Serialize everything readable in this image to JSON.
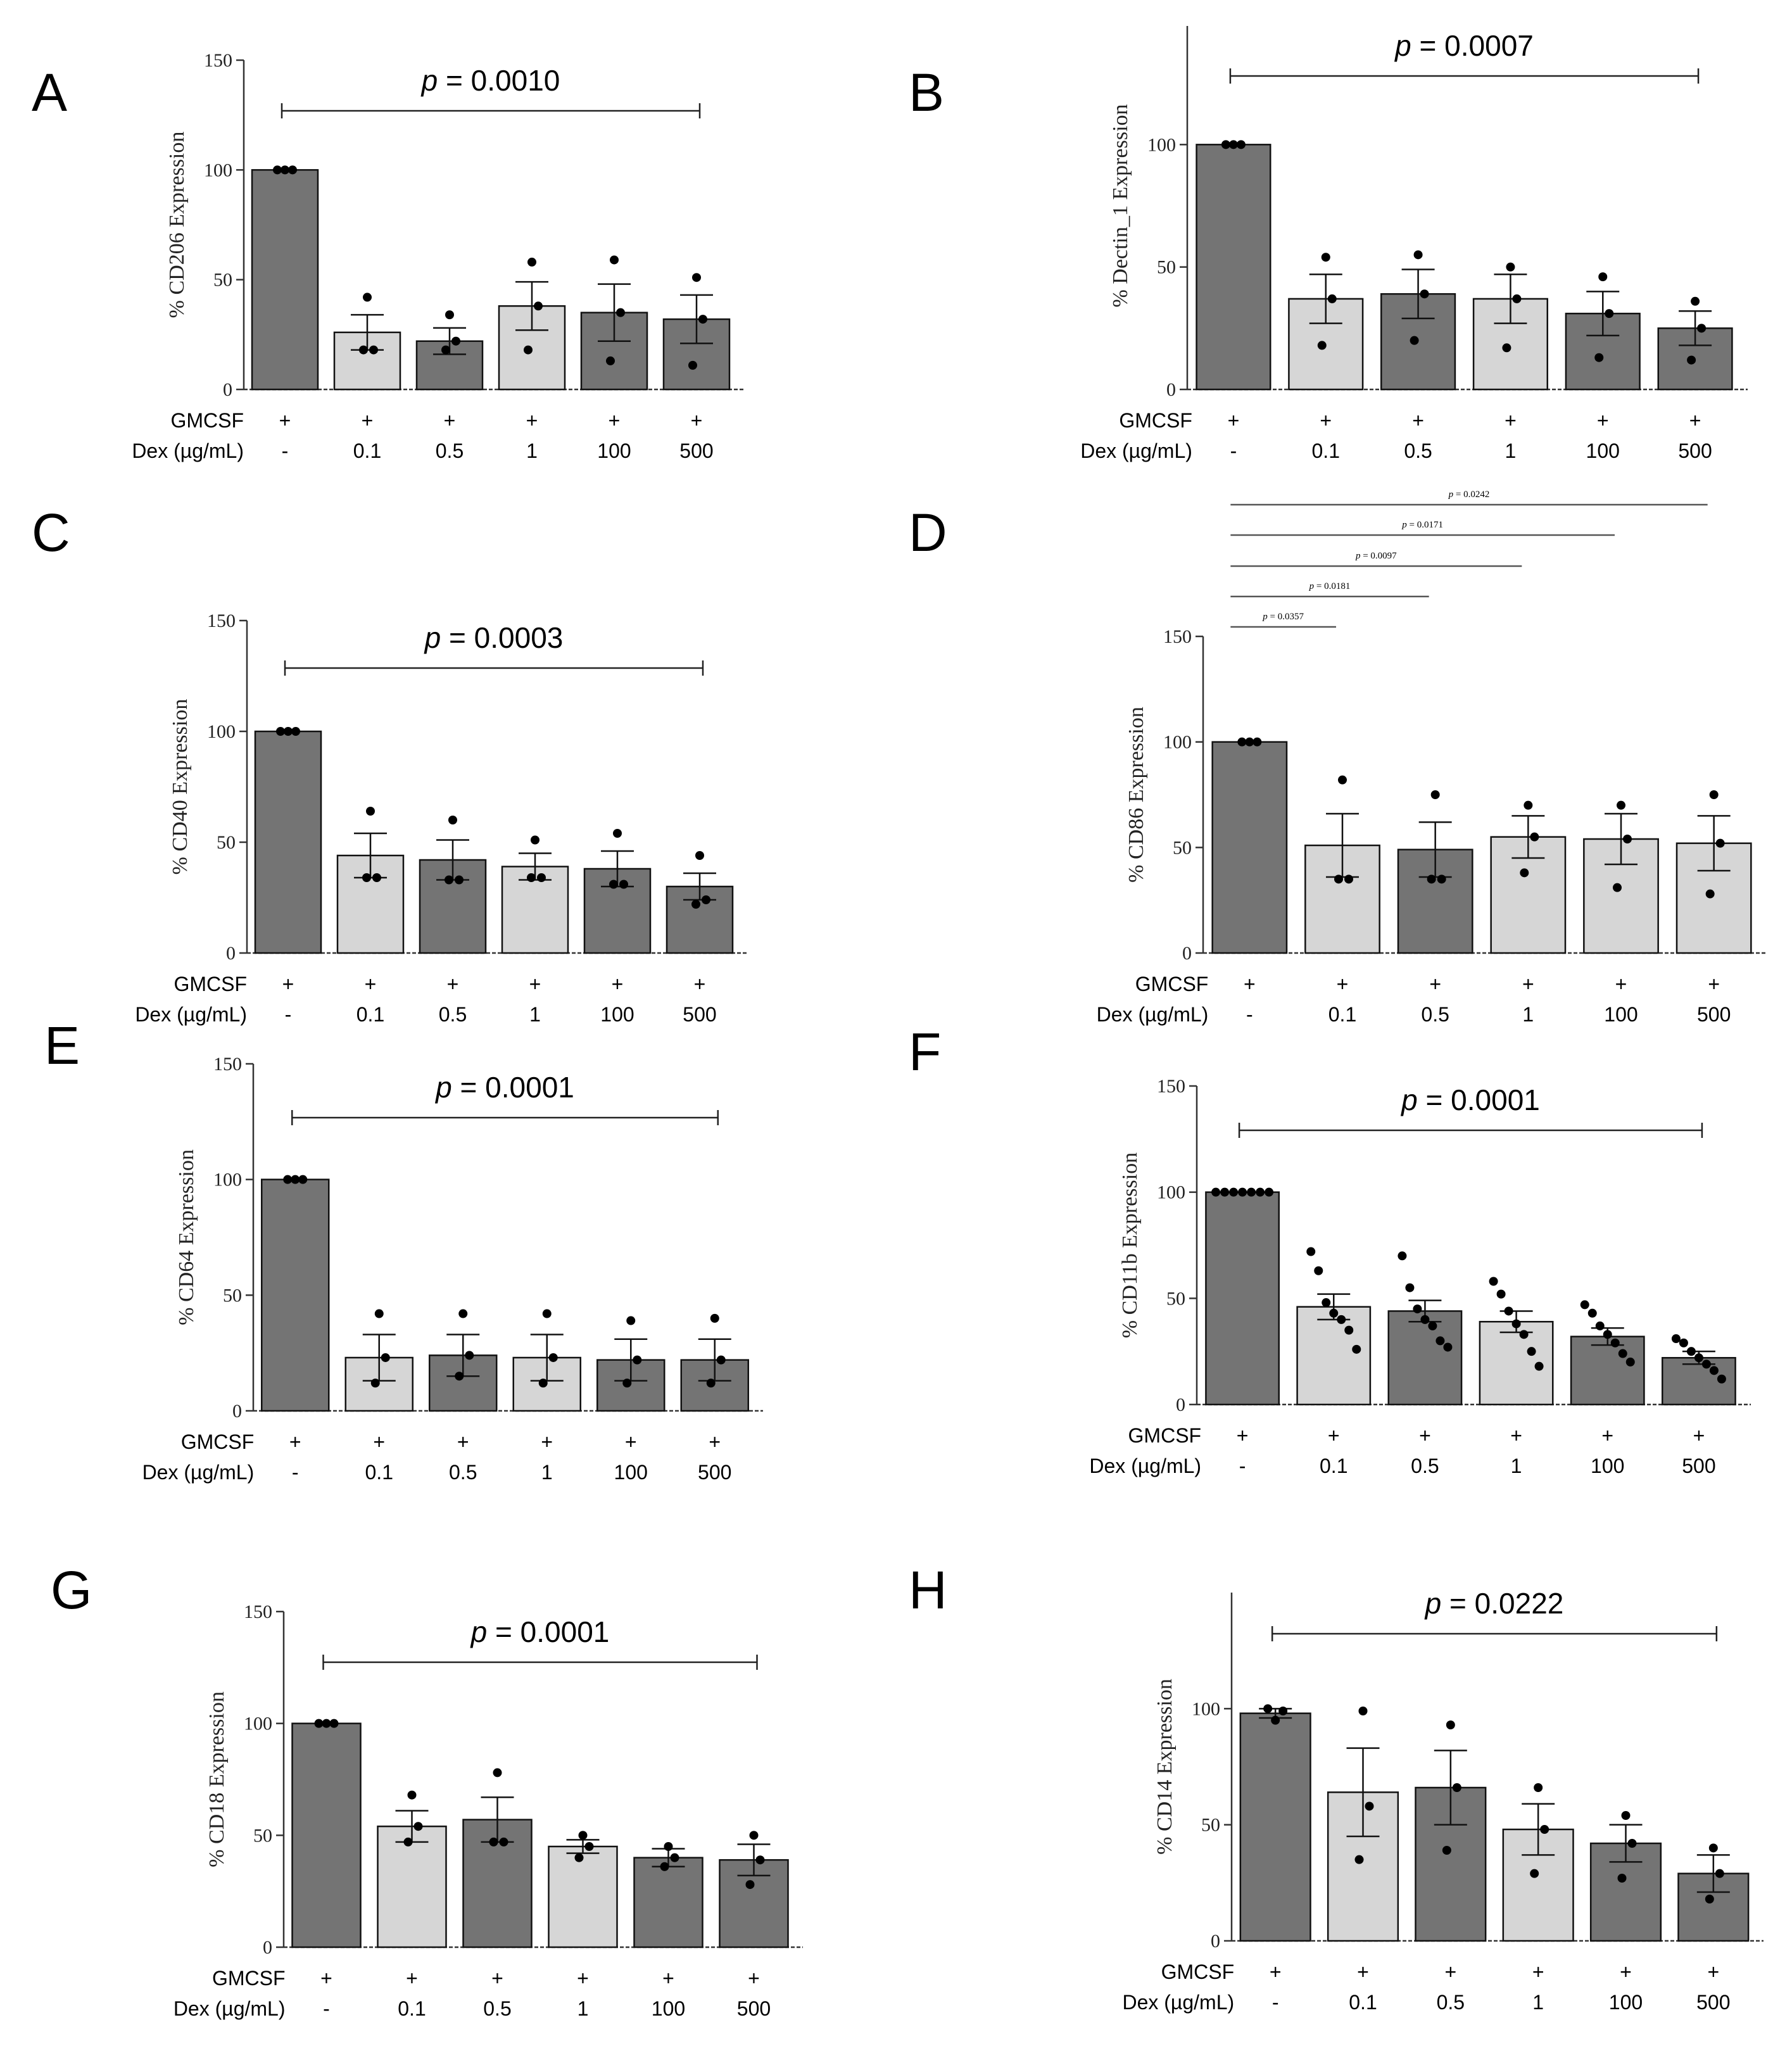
{
  "chart_data": [
    {
      "panel": "A",
      "type": "bar",
      "ylabel": "% CD206 Expression",
      "ylim": [
        0,
        150
      ],
      "yticks": [
        "0",
        "50",
        "100",
        "150"
      ],
      "categories": [
        "-",
        "0.1",
        "0.5",
        "1",
        "100",
        "500"
      ],
      "gmcsf": [
        "+",
        "+",
        "+",
        "+",
        "+",
        "+"
      ],
      "values": [
        100,
        26,
        22,
        38,
        35,
        32
      ],
      "errors": [
        0,
        8,
        6,
        11,
        13,
        11
      ],
      "points": [
        [
          100,
          100,
          100
        ],
        [
          42,
          18,
          18
        ],
        [
          34,
          18,
          22
        ],
        [
          58,
          18,
          38
        ],
        [
          59,
          13,
          35
        ],
        [
          51,
          11,
          32
        ]
      ],
      "colors": [
        "dark",
        "light",
        "dark",
        "light",
        "dark",
        "dark"
      ],
      "row_labels": [
        "GMCSF",
        "Dex (µg/mL)"
      ],
      "p_values": [
        {
          "label": "p = 0.0010",
          "from": 0,
          "to": 5
        }
      ]
    },
    {
      "panel": "B",
      "type": "bar",
      "ylabel": "% Dectin_1 Expression",
      "ylim": [
        0,
        150
      ],
      "yticks": [
        "0",
        "50",
        "100"
      ],
      "categories": [
        "-",
        "0.1",
        "0.5",
        "1",
        "100",
        "500"
      ],
      "gmcsf": [
        "+",
        "+",
        "+",
        "+",
        "+",
        "+"
      ],
      "values": [
        100,
        37,
        39,
        37,
        31,
        25
      ],
      "errors": [
        0,
        10,
        10,
        10,
        9,
        7
      ],
      "points": [
        [
          100,
          100,
          100
        ],
        [
          54,
          18,
          37
        ],
        [
          55,
          20,
          39
        ],
        [
          50,
          17,
          37
        ],
        [
          46,
          13,
          31
        ],
        [
          36,
          12,
          25
        ]
      ],
      "colors": [
        "dark",
        "light",
        "dark",
        "light",
        "dark",
        "dark"
      ],
      "row_labels": [
        "GMCSF",
        "Dex (µg/mL)"
      ],
      "p_values": [
        {
          "label": "p = 0.0007",
          "from": 0,
          "to": 5
        }
      ]
    },
    {
      "panel": "C",
      "type": "bar",
      "ylabel": "% CD40 Expression",
      "ylim": [
        0,
        150
      ],
      "yticks": [
        "0",
        "50",
        "100",
        "150"
      ],
      "categories": [
        "-",
        "0.1",
        "0.5",
        "1",
        "100",
        "500"
      ],
      "gmcsf": [
        "+",
        "+",
        "+",
        "+",
        "+",
        "+"
      ],
      "values": [
        100,
        44,
        42,
        39,
        38,
        30
      ],
      "errors": [
        0,
        10,
        9,
        6,
        8,
        6
      ],
      "points": [
        [
          100,
          100,
          100
        ],
        [
          64,
          34,
          34
        ],
        [
          60,
          33,
          33
        ],
        [
          51,
          34,
          34
        ],
        [
          54,
          31,
          31
        ],
        [
          44,
          22,
          24
        ]
      ],
      "colors": [
        "dark",
        "light",
        "dark",
        "light",
        "dark",
        "dark"
      ],
      "row_labels": [
        "GMCSF",
        "Dex (µg/mL)"
      ],
      "p_values": [
        {
          "label": "p = 0.0003",
          "from": 0,
          "to": 5
        }
      ]
    },
    {
      "panel": "D",
      "type": "bar",
      "ylabel": "% CD86 Expression",
      "ylim": [
        0,
        150
      ],
      "yticks": [
        "0",
        "50",
        "100",
        "150"
      ],
      "categories": [
        "-",
        "0.1",
        "0.5",
        "1",
        "100",
        "500"
      ],
      "gmcsf": [
        "+",
        "+",
        "+",
        "+",
        "+",
        "+"
      ],
      "values": [
        100,
        51,
        49,
        55,
        54,
        52
      ],
      "errors": [
        0,
        15,
        13,
        10,
        12,
        13
      ],
      "points": [
        [
          100,
          100,
          100
        ],
        [
          82,
          35,
          35
        ],
        [
          75,
          35,
          35
        ],
        [
          70,
          38,
          55
        ],
        [
          70,
          31,
          54
        ],
        [
          75,
          28,
          52
        ]
      ],
      "colors": [
        "dark",
        "light",
        "dark",
        "light",
        "light",
        "light"
      ],
      "row_labels": [
        "GMCSF",
        "Dex (µg/mL)"
      ],
      "p_values": [
        {
          "label": "p = 0.0357",
          "from": 0,
          "to": 1
        },
        {
          "label": "p = 0.0181",
          "from": 0,
          "to": 2
        },
        {
          "label": "p = 0.0097",
          "from": 0,
          "to": 3
        },
        {
          "label": "p = 0.0171",
          "from": 0,
          "to": 4
        },
        {
          "label": "p = 0.0242",
          "from": 0,
          "to": 5
        }
      ]
    },
    {
      "panel": "E",
      "type": "bar",
      "ylabel": "% CD64 Expression",
      "ylim": [
        0,
        150
      ],
      "yticks": [
        "0",
        "50",
        "100",
        "150"
      ],
      "categories": [
        "-",
        "0.1",
        "0.5",
        "1",
        "100",
        "500"
      ],
      "gmcsf": [
        "+",
        "+",
        "+",
        "+",
        "+",
        "+"
      ],
      "values": [
        100,
        23,
        24,
        23,
        22,
        22
      ],
      "errors": [
        0,
        10,
        9,
        10,
        9,
        9
      ],
      "points": [
        [
          100,
          100,
          100
        ],
        [
          42,
          12,
          23
        ],
        [
          42,
          15,
          24
        ],
        [
          42,
          12,
          23
        ],
        [
          39,
          12,
          22
        ],
        [
          40,
          12,
          22
        ]
      ],
      "colors": [
        "dark",
        "light",
        "dark",
        "light",
        "dark",
        "dark"
      ],
      "row_labels": [
        "GMCSF",
        "Dex (µg/mL)"
      ],
      "p_values": [
        {
          "label": "p = 0.0001",
          "from": 0,
          "to": 5
        }
      ]
    },
    {
      "panel": "F",
      "type": "bar",
      "ylabel": "% CD11b Expression",
      "ylim": [
        0,
        150
      ],
      "yticks": [
        "0",
        "50",
        "100",
        "150"
      ],
      "categories": [
        "-",
        "0.1",
        "0.5",
        "1",
        "100",
        "500"
      ],
      "gmcsf": [
        "+",
        "+",
        "+",
        "+",
        "+",
        "+"
      ],
      "values": [
        100,
        46,
        44,
        39,
        32,
        22
      ],
      "errors": [
        0,
        6,
        5,
        5,
        4,
        3
      ],
      "points": [
        [
          100,
          100,
          100,
          100,
          100,
          100,
          100
        ],
        [
          72,
          63,
          48,
          43,
          40,
          35,
          26
        ],
        [
          70,
          55,
          45,
          40,
          37,
          30,
          27
        ],
        [
          58,
          52,
          44,
          38,
          33,
          25,
          18
        ],
        [
          47,
          43,
          37,
          33,
          29,
          24,
          20
        ],
        [
          31,
          29,
          25,
          22,
          19,
          16,
          12
        ]
      ],
      "colors": [
        "dark",
        "light",
        "dark",
        "light",
        "dark",
        "dark"
      ],
      "row_labels": [
        "GMCSF",
        "Dex (µg/mL)"
      ],
      "p_values": [
        {
          "label": "p = 0.0001",
          "from": 0,
          "to": 5
        }
      ]
    },
    {
      "panel": "G",
      "type": "bar",
      "ylabel": "% CD18 Expression",
      "ylim": [
        0,
        150
      ],
      "yticks": [
        "0",
        "50",
        "100",
        "150"
      ],
      "categories": [
        "-",
        "0.1",
        "0.5",
        "1",
        "100",
        "500"
      ],
      "gmcsf": [
        "+",
        "+",
        "+",
        "+",
        "+",
        "+"
      ],
      "values": [
        100,
        54,
        57,
        45,
        40,
        39
      ],
      "errors": [
        0,
        7,
        10,
        3,
        4,
        7
      ],
      "points": [
        [
          100,
          100,
          100
        ],
        [
          68,
          47,
          54
        ],
        [
          78,
          47,
          47
        ],
        [
          50,
          40,
          45
        ],
        [
          45,
          36,
          40
        ],
        [
          50,
          28,
          39
        ]
      ],
      "colors": [
        "dark",
        "light",
        "dark",
        "light",
        "dark",
        "dark"
      ],
      "row_labels": [
        "GMCSF",
        "Dex (µg/mL)"
      ],
      "p_values": [
        {
          "label": "p = 0.0001",
          "from": 0,
          "to": 5
        }
      ]
    },
    {
      "panel": "H",
      "type": "bar",
      "ylabel": "% CD14 Expression",
      "ylim": [
        0,
        150
      ],
      "yticks": [
        "0",
        "50",
        "100"
      ],
      "categories": [
        "-",
        "0.1",
        "0.5",
        "1",
        "100",
        "500"
      ],
      "gmcsf": [
        "+",
        "+",
        "+",
        "+",
        "+",
        "+"
      ],
      "values": [
        98,
        64,
        66,
        48,
        42,
        29
      ],
      "errors": [
        2,
        19,
        16,
        11,
        8,
        8
      ],
      "points": [
        [
          100,
          95,
          99
        ],
        [
          99,
          35,
          58
        ],
        [
          93,
          39,
          66
        ],
        [
          66,
          29,
          48
        ],
        [
          54,
          27,
          42
        ],
        [
          40,
          18,
          29
        ]
      ],
      "colors": [
        "dark",
        "light",
        "dark",
        "light",
        "dark",
        "dark"
      ],
      "row_labels": [
        "GMCSF",
        "Dex (µg/mL)"
      ],
      "p_values": [
        {
          "label": "p = 0.0222",
          "from": 0,
          "to": 5
        }
      ]
    }
  ]
}
